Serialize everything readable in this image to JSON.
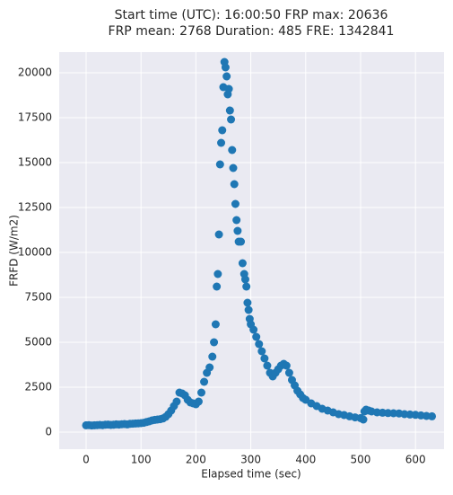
{
  "chart_data": {
    "type": "scatter",
    "title": [
      "Start time (UTC): 16:00:50 FRP max: 20636",
      "FRP mean: 2768 Duration: 485 FRE: 1342841"
    ],
    "xlabel": "Elapsed time (sec)",
    "ylabel": "FRFD (W/m2)",
    "color": "#1f77b4",
    "grid": true,
    "xlim": [
      -49,
      652
    ],
    "ylim": [
      -950,
      21150
    ],
    "xticks": [
      0,
      100,
      200,
      300,
      400,
      500,
      600
    ],
    "yticks": [
      0,
      2500,
      5000,
      7500,
      10000,
      12500,
      15000,
      17500,
      20000
    ],
    "x": [
      0,
      5,
      10,
      15,
      20,
      25,
      30,
      35,
      40,
      45,
      50,
      55,
      60,
      65,
      70,
      75,
      80,
      85,
      90,
      95,
      100,
      105,
      110,
      115,
      120,
      125,
      130,
      135,
      140,
      145,
      150,
      155,
      160,
      165,
      170,
      175,
      180,
      185,
      190,
      195,
      200,
      205,
      210,
      215,
      220,
      225,
      230,
      233,
      236,
      238,
      240,
      242,
      244,
      246,
      248,
      250,
      252,
      254,
      256,
      258,
      260,
      262,
      264,
      266,
      268,
      270,
      272,
      274,
      276,
      278,
      282,
      285,
      288,
      290,
      292,
      294,
      296,
      298,
      300,
      305,
      310,
      315,
      320,
      325,
      330,
      335,
      340,
      345,
      350,
      355,
      360,
      365,
      370,
      375,
      380,
      385,
      390,
      395,
      400,
      410,
      420,
      430,
      440,
      450,
      460,
      470,
      480,
      490,
      500,
      505,
      507,
      510,
      515,
      520,
      530,
      540,
      550,
      560,
      570,
      580,
      590,
      600,
      610,
      620,
      630
    ],
    "values": [
      380,
      390,
      370,
      380,
      390,
      400,
      390,
      410,
      420,
      400,
      410,
      430,
      420,
      440,
      450,
      430,
      460,
      470,
      480,
      490,
      500,
      520,
      560,
      600,
      650,
      680,
      700,
      720,
      760,
      850,
      1000,
      1200,
      1450,
      1700,
      2200,
      2150,
      2050,
      1800,
      1650,
      1600,
      1550,
      1700,
      2200,
      2800,
      3300,
      3600,
      4200,
      5000,
      6000,
      8100,
      8800,
      11000,
      14900,
      16100,
      16800,
      19200,
      20600,
      20300,
      19800,
      18800,
      19100,
      17900,
      17400,
      15700,
      14700,
      13800,
      12700,
      11800,
      11200,
      10600,
      10600,
      9400,
      8800,
      8500,
      8100,
      7200,
      6800,
      6300,
      6000,
      5700,
      5300,
      4900,
      4500,
      4100,
      3700,
      3300,
      3100,
      3300,
      3500,
      3700,
      3800,
      3700,
      3300,
      2900,
      2600,
      2300,
      2100,
      1900,
      1800,
      1600,
      1450,
      1300,
      1200,
      1100,
      1000,
      950,
      880,
      820,
      780,
      700,
      1150,
      1250,
      1200,
      1150,
      1100,
      1080,
      1060,
      1050,
      1040,
      1000,
      980,
      960,
      930,
      900,
      880
    ]
  }
}
